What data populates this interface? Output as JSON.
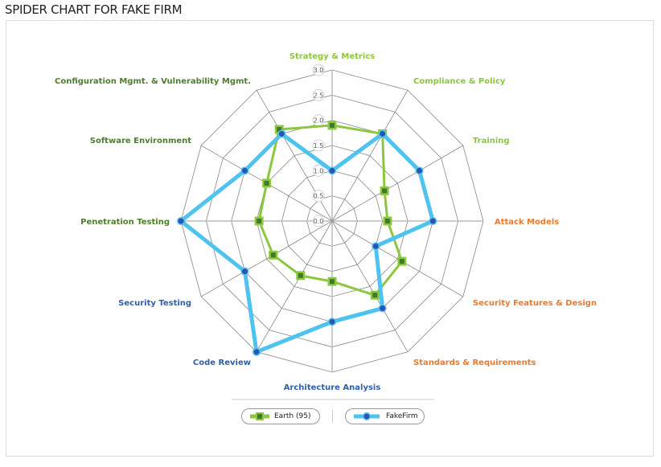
{
  "title": "SPIDER CHART FOR FAKE FIRM",
  "chart_data": {
    "type": "radar",
    "title": "SPIDER CHART FOR FAKE FIRM",
    "axes": [
      {
        "label": "Strategy & Metrics",
        "color": "#8dc63f"
      },
      {
        "label": "Compliance & Policy",
        "color": "#8dc63f"
      },
      {
        "label": "Training",
        "color": "#8dc63f"
      },
      {
        "label": "Attack Models",
        "color": "#ec7a2c"
      },
      {
        "label": "Security Features & Design",
        "color": "#ec7a2c"
      },
      {
        "label": "Standards & Requirements",
        "color": "#ec7a2c"
      },
      {
        "label": "Architecture Analysis",
        "color": "#2f5fa8"
      },
      {
        "label": "Code Review",
        "color": "#2f5fa8"
      },
      {
        "label": "Security Testing",
        "color": "#2f5fa8"
      },
      {
        "label": "Penetration Testing",
        "color": "#4e7d2c"
      },
      {
        "label": "Software Environment",
        "color": "#4e7d2c"
      },
      {
        "label": "Configuration Mgmt. & Vulnerability Mgmt.",
        "color": "#4e7d2c"
      }
    ],
    "ticks": [
      "0.0",
      "0.5",
      "1.0",
      "1.5",
      "2.0",
      "2.5",
      "3.0"
    ],
    "range": [
      0,
      3.0
    ],
    "grid": true,
    "legend_position": "bottom",
    "series": [
      {
        "name": "Earth (95)",
        "color": "#8dc63f",
        "marker_color": "#3f7a2a",
        "marker": "square",
        "values": [
          1.9,
          2.0,
          1.2,
          1.1,
          1.6,
          1.7,
          1.2,
          1.25,
          1.35,
          1.45,
          1.5,
          2.1
        ]
      },
      {
        "name": "FakeFirm",
        "color": "#4fc3ef",
        "marker_color": "#2a55b0",
        "marker": "circle",
        "values": [
          1.0,
          2.0,
          2.0,
          2.0,
          1.0,
          2.0,
          2.0,
          3.0,
          2.0,
          3.0,
          2.0,
          2.0
        ]
      }
    ]
  }
}
